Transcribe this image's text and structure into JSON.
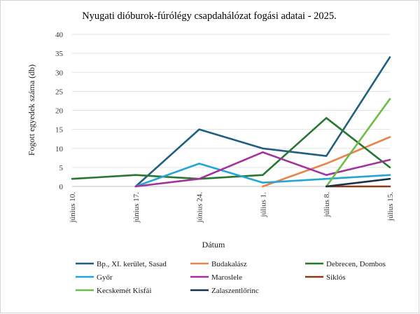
{
  "chart_data": {
    "type": "line",
    "title": "Nyugati dióburok-fúrólégy csapdahálózat fogási adatai - 2025.",
    "xlabel": "Dátum",
    "ylabel": "Fogott egyedek száma (db)",
    "ylim": [
      0,
      40
    ],
    "yticks": [
      0,
      5,
      10,
      15,
      20,
      25,
      30,
      35,
      40
    ],
    "grid": true,
    "legend_position": "bottom",
    "categories": [
      "június 10.",
      "június 17.",
      "június 24.",
      "július 1.",
      "július 8.",
      "július 15."
    ],
    "series": [
      {
        "name": "Bp., XI. kerület, Sasad",
        "color": "#1f5f82",
        "values": [
          null,
          0,
          15,
          10,
          8,
          34
        ]
      },
      {
        "name": "Budakalász",
        "color": "#e8834a",
        "values": [
          null,
          null,
          null,
          0,
          6,
          13
        ]
      },
      {
        "name": "Debrecen, Dombos",
        "color": "#27772f",
        "values": [
          2,
          3,
          2,
          3,
          18,
          5
        ]
      },
      {
        "name": "Győr",
        "color": "#22a6d6",
        "values": [
          null,
          0,
          6,
          1,
          2,
          3
        ]
      },
      {
        "name": "Maroslele",
        "color": "#a3329e",
        "values": [
          null,
          0,
          2,
          9,
          3,
          7
        ]
      },
      {
        "name": "Siklós",
        "color": "#8c3a13",
        "values": [
          null,
          null,
          null,
          null,
          0,
          0
        ]
      },
      {
        "name": "Kecskemét Kisfái",
        "color": "#6bbd45",
        "values": [
          null,
          null,
          null,
          null,
          0,
          23
        ]
      },
      {
        "name": "Zalaszentlőrinc",
        "color": "#15344a",
        "values": [
          null,
          null,
          null,
          null,
          0,
          2
        ]
      }
    ]
  }
}
